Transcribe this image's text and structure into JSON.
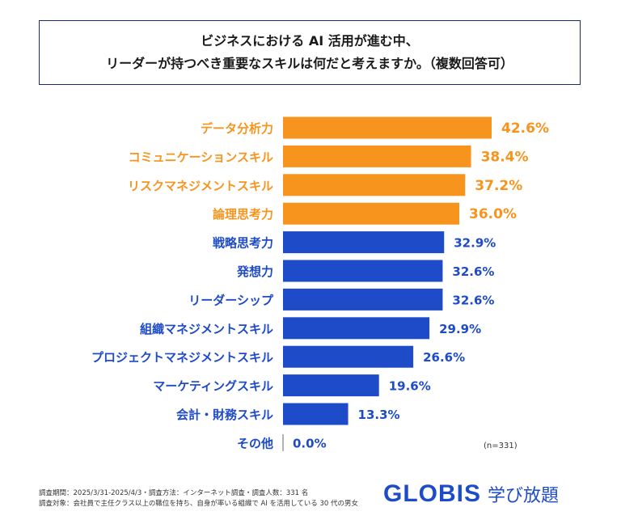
{
  "title": {
    "line1": "ビジネスにおける AI 活用が進む中、",
    "line2": "リーダーが持つべき重要なスキルは何だと考えますか。（複数回答可）"
  },
  "chart_data": {
    "type": "bar",
    "orientation": "horizontal",
    "categories": [
      "データ分析力",
      "コミュニケーションスキル",
      "リスクマネジメントスキル",
      "論理思考力",
      "戦略思考力",
      "発想力",
      "リーダーシップ",
      "組織マネジメントスキル",
      "プロジェクトマネジメントスキル",
      "マーケティングスキル",
      "会計・財務スキル",
      "その他"
    ],
    "values": [
      42.6,
      38.4,
      37.2,
      36.0,
      32.9,
      32.6,
      32.6,
      29.9,
      26.6,
      19.6,
      13.3,
      0.0
    ],
    "data_labels": [
      "42.6%",
      "38.4%",
      "37.2%",
      "36.0%",
      "32.9%",
      "32.6%",
      "32.6%",
      "29.9%",
      "26.6%",
      "19.6%",
      "13.3%",
      "0.0%"
    ],
    "highlight_count": 4,
    "colors": {
      "highlight": "#F7941D",
      "default": "#1E4BC7",
      "zero_line": "#999999"
    },
    "unit": "%"
  },
  "note": "(n=331)",
  "footer": {
    "line1": "調査期間：2025/3/31-2025/4/3・調査方法：インターネット調査・調査人数：331 名",
    "line2": "調査対象：会社員で主任クラス以上の職位を持ち、自身が率いる組織で AI を活用している 30 代の男女"
  },
  "logo": {
    "brand": "GLOBIS",
    "service": "学び放題"
  }
}
